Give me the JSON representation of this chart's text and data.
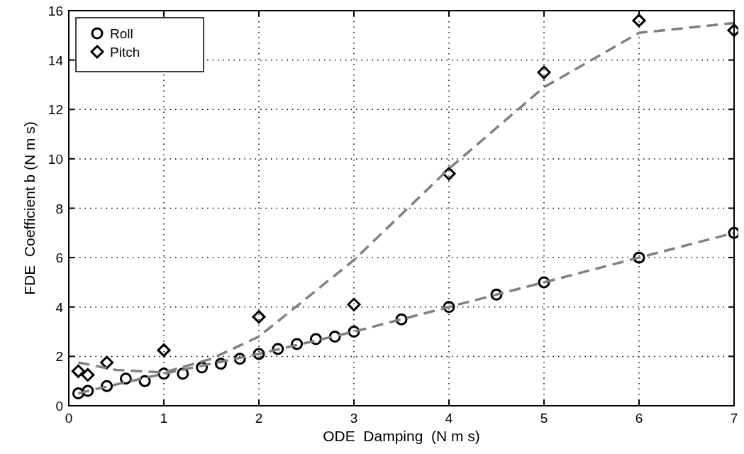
{
  "chart_data": {
    "type": "scatter",
    "xlabel": "ODE  Damping  (N m s)",
    "ylabel": "FDE  Coefficient b (N m s)",
    "xlim": [
      0,
      7
    ],
    "ylim": [
      0,
      16
    ],
    "xticks": [
      0,
      1,
      2,
      3,
      4,
      5,
      6,
      7
    ],
    "yticks": [
      0,
      2,
      4,
      6,
      8,
      10,
      12,
      14,
      16
    ],
    "grid": true,
    "legend": "top left",
    "series": [
      {
        "name": "Roll",
        "marker": "circle",
        "color": "#000000",
        "x": [
          0.1,
          0.2,
          0.4,
          0.6,
          0.8,
          1.0,
          1.2,
          1.4,
          1.6,
          1.8,
          2.0,
          2.2,
          2.4,
          2.6,
          2.8,
          3.0,
          3.5,
          4.0,
          4.5,
          5.0,
          6.0,
          7.0
        ],
        "values": [
          0.5,
          0.6,
          0.8,
          1.1,
          1.0,
          1.3,
          1.3,
          1.55,
          1.7,
          1.9,
          2.1,
          2.3,
          2.5,
          2.7,
          2.8,
          3.0,
          3.5,
          4.0,
          4.5,
          5.0,
          6.0,
          7.0
        ]
      },
      {
        "name": "Pitch",
        "marker": "diamond",
        "color": "#000000",
        "x": [
          0.1,
          0.2,
          0.4,
          1.0,
          2.0,
          3.0,
          4.0,
          5.0,
          6.0,
          7.0
        ],
        "values": [
          1.4,
          1.25,
          1.75,
          2.25,
          3.6,
          4.1,
          9.4,
          13.5,
          15.6,
          15.2
        ]
      },
      {
        "type": "line",
        "line_style": "dashed",
        "color": "#808080",
        "x": [
          0.1,
          0.2,
          1.0,
          2.0,
          3.0,
          4.0,
          5.0,
          6.0,
          7.0
        ],
        "values": [
          0.5,
          0.6,
          1.3,
          2.1,
          3.0,
          4.0,
          5.0,
          6.0,
          7.0
        ]
      },
      {
        "type": "line",
        "line_style": "dashed",
        "color": "#808080",
        "x": [
          0.1,
          0.5,
          1.0,
          1.5,
          2.0,
          3.0,
          4.0,
          5.0,
          6.0,
          7.0
        ],
        "values": [
          1.75,
          1.45,
          1.35,
          1.9,
          2.8,
          5.9,
          9.6,
          12.9,
          15.1,
          15.5
        ]
      }
    ]
  }
}
